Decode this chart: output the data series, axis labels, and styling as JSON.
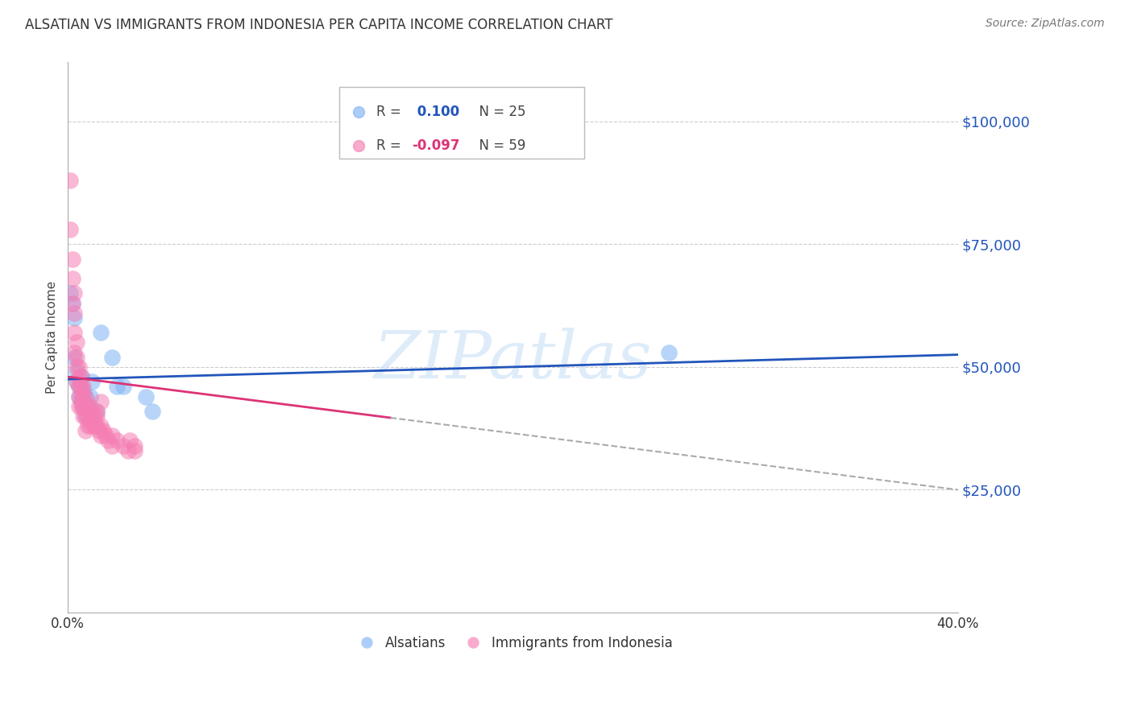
{
  "title": "ALSATIAN VS IMMIGRANTS FROM INDONESIA PER CAPITA INCOME CORRELATION CHART",
  "source": "Source: ZipAtlas.com",
  "ylabel": "Per Capita Income",
  "ytick_values": [
    25000,
    50000,
    75000,
    100000
  ],
  "ylim": [
    0,
    112000
  ],
  "xlim": [
    0.0,
    0.4
  ],
  "color_blue": "#7eb3f5",
  "color_pink": "#f57eb3",
  "color_blue_dark": "#2255bb",
  "color_pink_dark": "#dd3377",
  "color_grid": "#cccccc",
  "watermark": "ZIPatlas",
  "r_alsatian": 0.1,
  "n_alsatian": 25,
  "r_indonesia": -0.097,
  "n_indonesia": 59,
  "alsatian_x": [
    0.001,
    0.002,
    0.003,
    0.003,
    0.004,
    0.004,
    0.005,
    0.005,
    0.006,
    0.006,
    0.007,
    0.007,
    0.008,
    0.009,
    0.01,
    0.011,
    0.013,
    0.015,
    0.02,
    0.022,
    0.025,
    0.035,
    0.038,
    0.27,
    0.008
  ],
  "alsatian_y": [
    65000,
    63000,
    60000,
    52000,
    49000,
    47000,
    46000,
    44000,
    48000,
    43000,
    45000,
    42000,
    44000,
    42000,
    44000,
    47000,
    41000,
    57000,
    52000,
    46000,
    46000,
    44000,
    41000,
    53000,
    40000
  ],
  "indonesia_x": [
    0.001,
    0.001,
    0.002,
    0.002,
    0.002,
    0.003,
    0.003,
    0.003,
    0.003,
    0.004,
    0.004,
    0.004,
    0.004,
    0.005,
    0.005,
    0.005,
    0.005,
    0.005,
    0.006,
    0.006,
    0.006,
    0.006,
    0.007,
    0.007,
    0.007,
    0.007,
    0.008,
    0.008,
    0.008,
    0.009,
    0.009,
    0.009,
    0.01,
    0.01,
    0.01,
    0.011,
    0.011,
    0.012,
    0.012,
    0.013,
    0.013,
    0.014,
    0.015,
    0.015,
    0.016,
    0.017,
    0.018,
    0.02,
    0.02,
    0.022,
    0.025,
    0.027,
    0.028,
    0.03,
    0.03,
    0.015,
    0.013,
    0.01,
    0.008
  ],
  "indonesia_y": [
    88000,
    78000,
    72000,
    68000,
    63000,
    65000,
    61000,
    57000,
    53000,
    55000,
    52000,
    50000,
    47000,
    50000,
    48000,
    46000,
    44000,
    42000,
    48000,
    46000,
    44000,
    42000,
    46000,
    44000,
    42000,
    40000,
    44000,
    42000,
    40000,
    42000,
    40000,
    38000,
    42000,
    40000,
    38000,
    41000,
    39000,
    40000,
    38000,
    40000,
    38000,
    37000,
    38000,
    36000,
    37000,
    36000,
    35000,
    36000,
    34000,
    35000,
    34000,
    33000,
    35000,
    34000,
    33000,
    43000,
    41000,
    39000,
    37000
  ]
}
